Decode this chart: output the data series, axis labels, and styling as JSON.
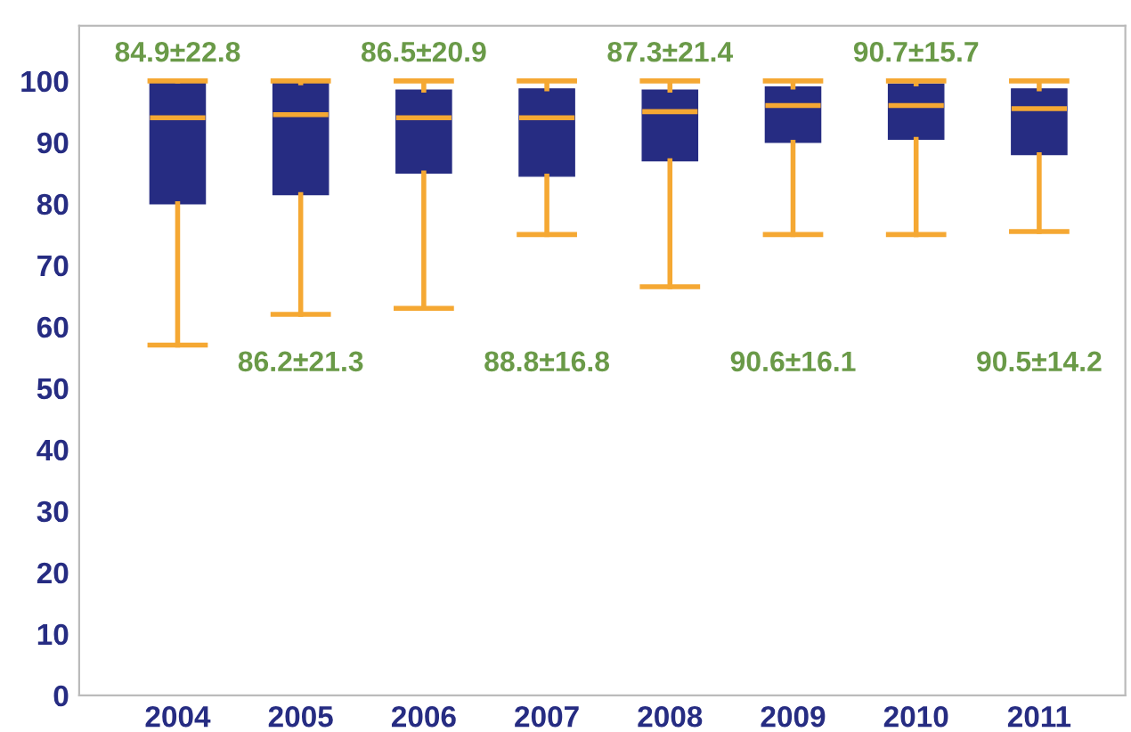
{
  "chart_data": {
    "type": "box",
    "categories": [
      "2004",
      "2005",
      "2006",
      "2007",
      "2008",
      "2009",
      "2010",
      "2011"
    ],
    "boxes": [
      {
        "low": 57,
        "q1": 80,
        "median": 94,
        "q3": 100,
        "high": 100
      },
      {
        "low": 62,
        "q1": 81.5,
        "median": 94.5,
        "q3": 99.7,
        "high": 100
      },
      {
        "low": 63,
        "q1": 85,
        "median": 94,
        "q3": 98.5,
        "high": 100
      },
      {
        "low": 75,
        "q1": 84.5,
        "median": 94,
        "q3": 98.7,
        "high": 100
      },
      {
        "low": 66.5,
        "q1": 87,
        "median": 95,
        "q3": 98.5,
        "high": 100
      },
      {
        "low": 75,
        "q1": 90,
        "median": 96,
        "q3": 99,
        "high": 100
      },
      {
        "low": 75,
        "q1": 90.5,
        "median": 96,
        "q3": 99.5,
        "high": 100
      },
      {
        "low": 75.5,
        "q1": 88,
        "median": 95.5,
        "q3": 98.7,
        "high": 100
      }
    ],
    "color": "#262c82",
    "ylim": [
      0,
      109
    ],
    "yticks": [
      0,
      10,
      20,
      30,
      40,
      50,
      60,
      70,
      80,
      90,
      100
    ],
    "grid": false,
    "annotations": [
      "84.9±22.8",
      "86.2±21.3",
      "86.5±20.9",
      "88.8±16.8",
      "87.3±21.4",
      "90.6±16.1",
      "90.7±15.7",
      "90.5±14.2"
    ]
  }
}
